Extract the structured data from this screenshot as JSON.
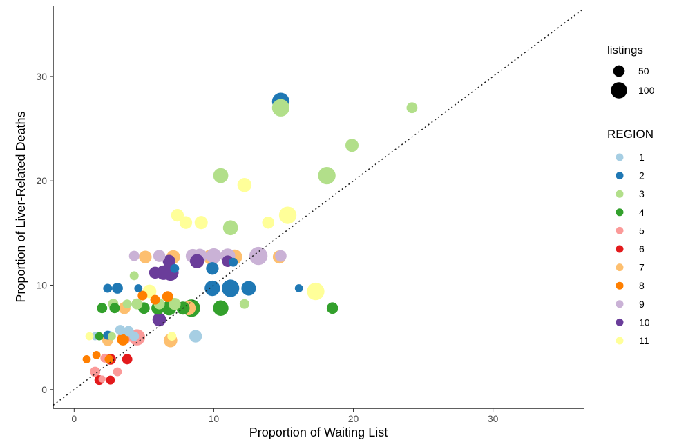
{
  "chart_data": {
    "type": "scatter",
    "xlabel": "Proportion of Waiting List",
    "ylabel": "Proportion of Liver-Related Deaths",
    "xlim": [
      -1.5,
      36.5
    ],
    "ylim": [
      -1.8,
      36.8
    ],
    "xticks": [
      0,
      10,
      20,
      30
    ],
    "yticks": [
      0,
      10,
      20,
      30
    ],
    "grid": false,
    "reference_line": "y = x (dotted)",
    "size_legend": {
      "title": "listings",
      "entries": [
        {
          "label": "50",
          "value": 50
        },
        {
          "label": "100",
          "value": 100
        }
      ]
    },
    "color_legend": {
      "title": "REGION",
      "placement": "right"
    },
    "series": [
      {
        "name": "1",
        "color": "#a6cee3",
        "points": [
          {
            "x": 1.5,
            "y": 5.1,
            "s": 25
          },
          {
            "x": 2.5,
            "y": 5.1,
            "s": 45
          },
          {
            "x": 3.3,
            "y": 5.7,
            "s": 40
          },
          {
            "x": 3.9,
            "y": 5.6,
            "s": 40
          },
          {
            "x": 4.3,
            "y": 5.1,
            "s": 35
          },
          {
            "x": 8.7,
            "y": 5.1,
            "s": 60
          }
        ]
      },
      {
        "name": "2",
        "color": "#1f78b4",
        "points": [
          {
            "x": 14.8,
            "y": 27.6,
            "s": 115
          },
          {
            "x": 2.4,
            "y": 9.7,
            "s": 30
          },
          {
            "x": 3.1,
            "y": 9.7,
            "s": 45
          },
          {
            "x": 4.6,
            "y": 9.7,
            "s": 25
          },
          {
            "x": 7.2,
            "y": 11.6,
            "s": 30
          },
          {
            "x": 9.9,
            "y": 11.6,
            "s": 60
          },
          {
            "x": 9.9,
            "y": 9.7,
            "s": 90
          },
          {
            "x": 11.2,
            "y": 9.7,
            "s": 115
          },
          {
            "x": 12.5,
            "y": 9.7,
            "s": 80
          },
          {
            "x": 16.1,
            "y": 9.7,
            "s": 25
          },
          {
            "x": 11.4,
            "y": 12.2,
            "s": 30
          },
          {
            "x": 2.4,
            "y": 5.2,
            "s": 30
          }
        ]
      },
      {
        "name": "3",
        "color": "#b2df8a",
        "points": [
          {
            "x": 14.8,
            "y": 27.0,
            "s": 115
          },
          {
            "x": 24.2,
            "y": 27.0,
            "s": 45
          },
          {
            "x": 19.9,
            "y": 23.4,
            "s": 65
          },
          {
            "x": 10.5,
            "y": 20.5,
            "s": 85
          },
          {
            "x": 18.1,
            "y": 20.5,
            "s": 115
          },
          {
            "x": 11.2,
            "y": 15.5,
            "s": 85
          },
          {
            "x": 4.3,
            "y": 10.9,
            "s": 30
          },
          {
            "x": 2.8,
            "y": 8.2,
            "s": 40
          },
          {
            "x": 3.8,
            "y": 8.2,
            "s": 30
          },
          {
            "x": 4.5,
            "y": 8.2,
            "s": 45
          },
          {
            "x": 6.1,
            "y": 8.2,
            "s": 45
          },
          {
            "x": 7.2,
            "y": 8.2,
            "s": 55
          },
          {
            "x": 12.2,
            "y": 8.2,
            "s": 35
          },
          {
            "x": 2.7,
            "y": 5.1,
            "s": 25
          }
        ]
      },
      {
        "name": "4",
        "color": "#33a02c",
        "points": [
          {
            "x": 2.0,
            "y": 7.8,
            "s": 40
          },
          {
            "x": 2.9,
            "y": 7.8,
            "s": 40
          },
          {
            "x": 5.0,
            "y": 7.8,
            "s": 50
          },
          {
            "x": 6.0,
            "y": 7.8,
            "s": 65
          },
          {
            "x": 6.8,
            "y": 7.8,
            "s": 80
          },
          {
            "x": 7.8,
            "y": 7.8,
            "s": 65
          },
          {
            "x": 8.4,
            "y": 7.8,
            "s": 115
          },
          {
            "x": 10.5,
            "y": 7.8,
            "s": 90
          },
          {
            "x": 18.5,
            "y": 7.8,
            "s": 50
          },
          {
            "x": 1.8,
            "y": 5.1,
            "s": 25
          }
        ]
      },
      {
        "name": "5",
        "color": "#fb9a99",
        "points": [
          {
            "x": 1.5,
            "y": 1.7,
            "s": 40
          },
          {
            "x": 3.1,
            "y": 1.7,
            "s": 30
          },
          {
            "x": 2.2,
            "y": 3.0,
            "s": 30
          },
          {
            "x": 3.6,
            "y": 5.0,
            "s": 70
          },
          {
            "x": 4.5,
            "y": 5.0,
            "s": 100
          },
          {
            "x": 2.0,
            "y": 1.0,
            "s": 20
          }
        ]
      },
      {
        "name": "6",
        "color": "#e31a1c",
        "points": [
          {
            "x": 1.8,
            "y": 0.9,
            "s": 35
          },
          {
            "x": 2.6,
            "y": 0.9,
            "s": 30
          },
          {
            "x": 2.6,
            "y": 2.9,
            "s": 45
          },
          {
            "x": 3.8,
            "y": 2.9,
            "s": 40
          }
        ]
      },
      {
        "name": "7",
        "color": "#fdbf6f",
        "points": [
          {
            "x": 5.1,
            "y": 12.7,
            "s": 60
          },
          {
            "x": 7.1,
            "y": 12.7,
            "s": 70
          },
          {
            "x": 9.8,
            "y": 12.7,
            "s": 90
          },
          {
            "x": 11.5,
            "y": 12.7,
            "s": 85
          },
          {
            "x": 14.7,
            "y": 12.7,
            "s": 65
          },
          {
            "x": 3.6,
            "y": 7.8,
            "s": 55
          },
          {
            "x": 8.2,
            "y": 7.8,
            "s": 75
          },
          {
            "x": 2.4,
            "y": 4.7,
            "s": 45
          },
          {
            "x": 6.9,
            "y": 4.7,
            "s": 70
          }
        ]
      },
      {
        "name": "8",
        "color": "#ff7f00",
        "points": [
          {
            "x": 4.9,
            "y": 9.0,
            "s": 35
          },
          {
            "x": 6.7,
            "y": 8.9,
            "s": 45
          },
          {
            "x": 5.8,
            "y": 8.6,
            "s": 35
          },
          {
            "x": 0.9,
            "y": 2.9,
            "s": 25
          },
          {
            "x": 1.6,
            "y": 3.3,
            "s": 25
          },
          {
            "x": 3.5,
            "y": 4.8,
            "s": 55
          },
          {
            "x": 2.5,
            "y": 2.9,
            "s": 30
          }
        ]
      },
      {
        "name": "9",
        "color": "#cab2d6",
        "points": [
          {
            "x": 4.3,
            "y": 12.8,
            "s": 40
          },
          {
            "x": 6.1,
            "y": 12.8,
            "s": 55
          },
          {
            "x": 8.5,
            "y": 12.8,
            "s": 75
          },
          {
            "x": 9.0,
            "y": 12.8,
            "s": 80
          },
          {
            "x": 10.0,
            "y": 12.8,
            "s": 90
          },
          {
            "x": 11.0,
            "y": 12.8,
            "s": 85
          },
          {
            "x": 13.2,
            "y": 12.8,
            "s": 125
          },
          {
            "x": 14.8,
            "y": 12.8,
            "s": 50
          }
        ]
      },
      {
        "name": "10",
        "color": "#6a3d9a",
        "points": [
          {
            "x": 8.8,
            "y": 12.3,
            "s": 75
          },
          {
            "x": 6.8,
            "y": 12.3,
            "s": 60
          },
          {
            "x": 11.0,
            "y": 12.3,
            "s": 50
          },
          {
            "x": 5.8,
            "y": 11.2,
            "s": 55
          },
          {
            "x": 6.4,
            "y": 11.2,
            "s": 80
          },
          {
            "x": 6.9,
            "y": 11.2,
            "s": 100
          },
          {
            "x": 6.1,
            "y": 6.7,
            "s": 70
          }
        ]
      },
      {
        "name": "11",
        "color": "#ffff99",
        "points": [
          {
            "x": 12.2,
            "y": 19.6,
            "s": 75
          },
          {
            "x": 7.4,
            "y": 16.7,
            "s": 60
          },
          {
            "x": 8.0,
            "y": 16.0,
            "s": 60
          },
          {
            "x": 9.1,
            "y": 16.0,
            "s": 65
          },
          {
            "x": 13.9,
            "y": 16.0,
            "s": 55
          },
          {
            "x": 15.3,
            "y": 16.7,
            "s": 115
          },
          {
            "x": 17.3,
            "y": 9.4,
            "s": 115
          },
          {
            "x": 5.4,
            "y": 9.4,
            "s": 70
          },
          {
            "x": 1.1,
            "y": 5.1,
            "s": 25
          },
          {
            "x": 7.0,
            "y": 5.1,
            "s": 30
          }
        ]
      }
    ]
  }
}
